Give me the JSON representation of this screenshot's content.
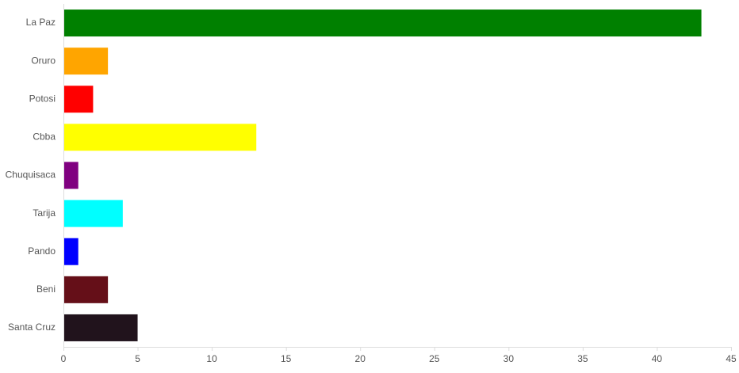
{
  "chart_data": {
    "type": "bar",
    "orientation": "horizontal",
    "title": "",
    "xlabel": "",
    "ylabel": "",
    "xlim": [
      0,
      45
    ],
    "xticks": [
      0,
      5,
      10,
      15,
      20,
      25,
      30,
      35,
      40,
      45
    ],
    "grid": false,
    "legend": "none",
    "categories": [
      "La Paz",
      "Oruro",
      "Potosi",
      "Cbba",
      "Chuquisaca",
      "Tarija",
      "Pando",
      "Beni",
      "Santa Cruz"
    ],
    "values": [
      43,
      3,
      2,
      13,
      1,
      4,
      1,
      3,
      5
    ],
    "colors": [
      "#008000",
      "#FFA500",
      "#FF0000",
      "#FFFF00",
      "#800080",
      "#00FFFF",
      "#0000FF",
      "#650F18",
      "#21131C"
    ],
    "axis_color": "#DDDDDD",
    "text_color": "#555555"
  }
}
